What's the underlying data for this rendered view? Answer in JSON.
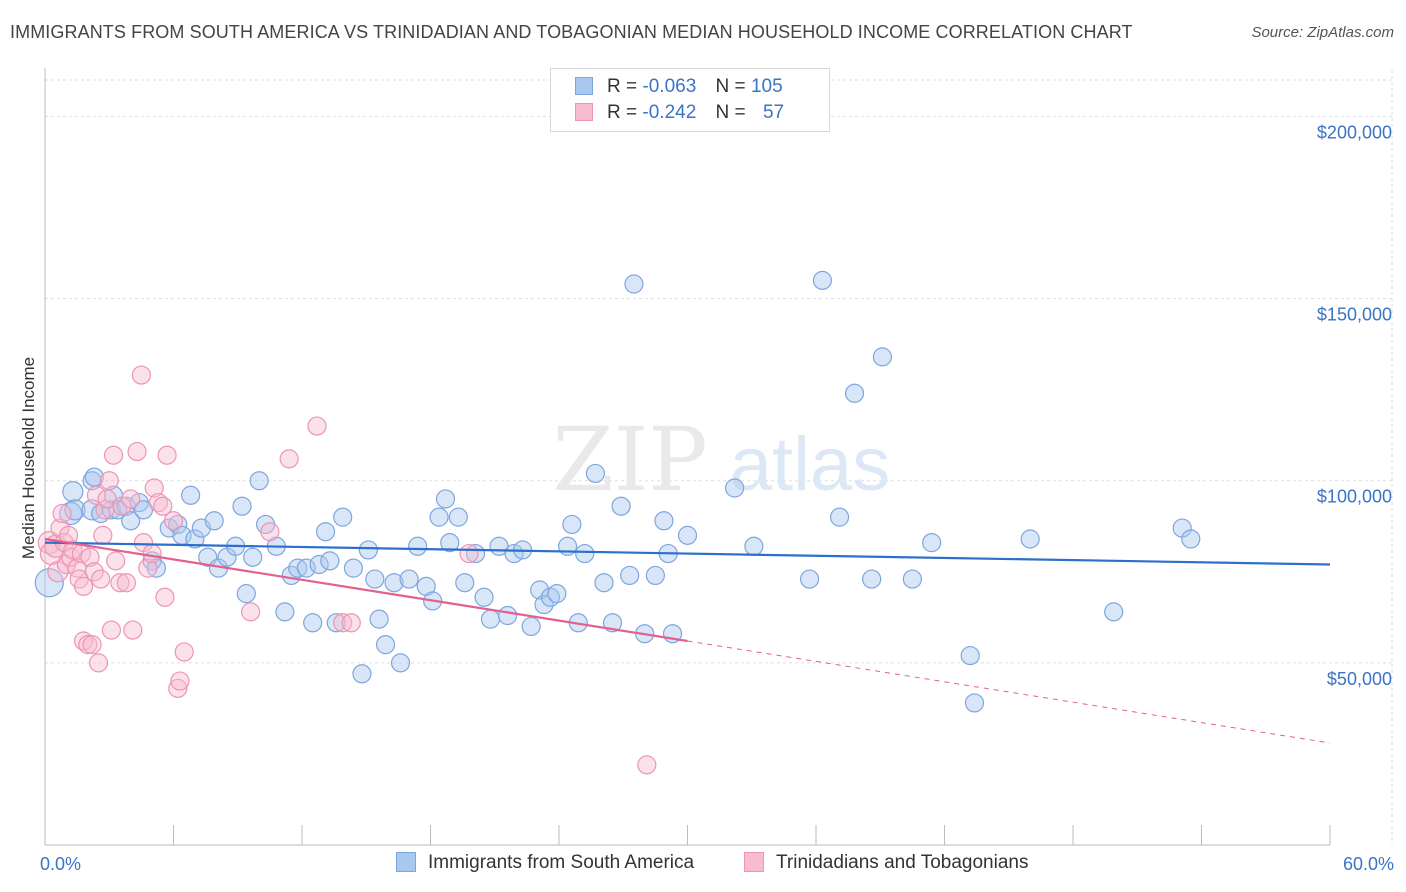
{
  "header": {
    "title": "IMMIGRANTS FROM SOUTH AMERICA VS TRINIDADIAN AND TOBAGONIAN MEDIAN HOUSEHOLD INCOME CORRELATION CHART",
    "source": "Source: ZipAtlas.com"
  },
  "legend": {
    "rows": [
      {
        "r_label": "R =",
        "r_value": "-0.063",
        "n_label": "N =",
        "n_value": "105"
      },
      {
        "r_label": "R =",
        "r_value": "-0.242",
        "n_label": "N =",
        "n_value": "57"
      }
    ]
  },
  "watermark": {
    "zip": "ZIP",
    "atlas": "atlas"
  },
  "colors": {
    "blue_fill": "#a9c8f0",
    "blue_stroke": "#7ea6de",
    "blue_line": "#2c6fcc",
    "pink_fill": "#f7bcd0",
    "pink_stroke": "#ee94b4",
    "pink_line": "#e4608e",
    "grid": "#dddddd",
    "tick_text": "#3a74c6"
  },
  "chart_data": {
    "type": "scatter",
    "title": "IMMIGRANTS FROM SOUTH AMERICA VS TRINIDADIAN AND TOBAGONIAN MEDIAN HOUSEHOLD INCOME CORRELATION CHART",
    "xlabel": "",
    "ylabel": "Median Household Income",
    "xlim": [
      0,
      60
    ],
    "ylim": [
      0,
      210000
    ],
    "x_tick_labels": [
      "0.0%",
      "60.0%"
    ],
    "y_ticks": [
      50000,
      100000,
      150000,
      200000
    ],
    "y_tick_labels": [
      "$50,000",
      "$100,000",
      "$150,000",
      "$200,000"
    ],
    "grid": true,
    "legend_position": "top-center",
    "series": [
      {
        "name": "Immigrants from South America",
        "r": -0.063,
        "n": 105,
        "trend": {
          "x": [
            0,
            60
          ],
          "y": [
            83000,
            77000
          ]
        },
        "points": [
          [
            0.2,
            72000,
            14
          ],
          [
            1.2,
            91000,
            11
          ],
          [
            1.3,
            97000,
            10
          ],
          [
            1.4,
            92000,
            10
          ],
          [
            2.2,
            92000,
            10
          ],
          [
            2.2,
            100000,
            9
          ],
          [
            2.3,
            101000,
            9
          ],
          [
            2.6,
            91000,
            9
          ],
          [
            3.1,
            92000,
            9
          ],
          [
            3.2,
            96000,
            9
          ],
          [
            3.4,
            92000,
            9
          ],
          [
            3.8,
            93000,
            9
          ],
          [
            4.0,
            89000,
            9
          ],
          [
            4.4,
            94000,
            9
          ],
          [
            4.6,
            92000,
            9
          ],
          [
            5.0,
            78000,
            9
          ],
          [
            5.2,
            76000,
            9
          ],
          [
            5.8,
            87000,
            9
          ],
          [
            6.2,
            88000,
            9
          ],
          [
            6.4,
            85000,
            9
          ],
          [
            6.8,
            96000,
            9
          ],
          [
            7.0,
            84000,
            9
          ],
          [
            7.3,
            87000,
            9
          ],
          [
            7.6,
            79000,
            9
          ],
          [
            7.9,
            89000,
            9
          ],
          [
            8.1,
            76000,
            9
          ],
          [
            8.5,
            79000,
            9
          ],
          [
            8.9,
            82000,
            9
          ],
          [
            9.2,
            93000,
            9
          ],
          [
            9.4,
            69000,
            9
          ],
          [
            9.7,
            79000,
            9
          ],
          [
            10.0,
            100000,
            9
          ],
          [
            10.3,
            88000,
            9
          ],
          [
            10.8,
            82000,
            9
          ],
          [
            11.2,
            64000,
            9
          ],
          [
            11.5,
            74000,
            9
          ],
          [
            11.8,
            76000,
            9
          ],
          [
            12.2,
            76000,
            9
          ],
          [
            12.5,
            61000,
            9
          ],
          [
            12.8,
            77000,
            9
          ],
          [
            13.1,
            86000,
            9
          ],
          [
            13.3,
            78000,
            9
          ],
          [
            13.6,
            61000,
            9
          ],
          [
            13.9,
            90000,
            9
          ],
          [
            14.4,
            76000,
            9
          ],
          [
            14.8,
            47000,
            9
          ],
          [
            15.1,
            81000,
            9
          ],
          [
            15.4,
            73000,
            9
          ],
          [
            15.6,
            62000,
            9
          ],
          [
            15.9,
            55000,
            9
          ],
          [
            16.3,
            72000,
            9
          ],
          [
            16.6,
            50000,
            9
          ],
          [
            17.0,
            73000,
            9
          ],
          [
            17.4,
            82000,
            9
          ],
          [
            17.8,
            71000,
            9
          ],
          [
            18.1,
            67000,
            9
          ],
          [
            18.4,
            90000,
            9
          ],
          [
            18.7,
            95000,
            9
          ],
          [
            18.9,
            83000,
            9
          ],
          [
            19.3,
            90000,
            9
          ],
          [
            19.6,
            72000,
            9
          ],
          [
            20.1,
            80000,
            9
          ],
          [
            20.5,
            68000,
            9
          ],
          [
            20.8,
            62000,
            9
          ],
          [
            21.2,
            82000,
            9
          ],
          [
            21.6,
            63000,
            9
          ],
          [
            21.9,
            80000,
            9
          ],
          [
            22.3,
            81000,
            9
          ],
          [
            22.7,
            60000,
            9
          ],
          [
            23.1,
            70000,
            9
          ],
          [
            23.3,
            66000,
            9
          ],
          [
            23.6,
            68000,
            9
          ],
          [
            23.9,
            69000,
            9
          ],
          [
            24.4,
            82000,
            9
          ],
          [
            24.6,
            88000,
            9
          ],
          [
            24.9,
            61000,
            9
          ],
          [
            25.2,
            80000,
            9
          ],
          [
            25.7,
            102000,
            9
          ],
          [
            26.1,
            72000,
            9
          ],
          [
            26.5,
            61000,
            9
          ],
          [
            26.9,
            93000,
            9
          ],
          [
            27.3,
            74000,
            9
          ],
          [
            27.5,
            154000,
            9
          ],
          [
            28.0,
            58000,
            9
          ],
          [
            28.5,
            74000,
            9
          ],
          [
            28.9,
            89000,
            9
          ],
          [
            29.1,
            80000,
            9
          ],
          [
            29.3,
            58000,
            9
          ],
          [
            30.0,
            85000,
            9
          ],
          [
            32.2,
            98000,
            9
          ],
          [
            33.1,
            82000,
            9
          ],
          [
            35.7,
            73000,
            9
          ],
          [
            36.3,
            155000,
            9
          ],
          [
            37.1,
            90000,
            9
          ],
          [
            37.8,
            124000,
            9
          ],
          [
            38.6,
            73000,
            9
          ],
          [
            39.1,
            134000,
            9
          ],
          [
            40.5,
            73000,
            9
          ],
          [
            41.4,
            83000,
            9
          ],
          [
            43.2,
            52000,
            9
          ],
          [
            43.4,
            39000,
            9
          ],
          [
            46.0,
            84000,
            9
          ],
          [
            49.9,
            64000,
            9
          ],
          [
            53.1,
            87000,
            9
          ],
          [
            53.5,
            84000,
            9
          ]
        ]
      },
      {
        "name": "Trinidadians and Tobagonians",
        "r": -0.242,
        "n": 57,
        "trend": {
          "x": [
            0,
            30
          ],
          "y": [
            84000,
            56000
          ],
          "dashed_to": {
            "x": 60,
            "y": 28000
          }
        },
        "points": [
          [
            0.2,
            83000,
            11
          ],
          [
            0.3,
            80000,
            11
          ],
          [
            0.5,
            82000,
            11
          ],
          [
            0.6,
            75000,
            10
          ],
          [
            0.7,
            87000,
            9
          ],
          [
            0.8,
            91000,
            9
          ],
          [
            0.9,
            83000,
            9
          ],
          [
            1.0,
            77000,
            9
          ],
          [
            1.1,
            85000,
            9
          ],
          [
            1.2,
            79000,
            9
          ],
          [
            1.3,
            81000,
            9
          ],
          [
            1.5,
            76000,
            9
          ],
          [
            1.6,
            73000,
            9
          ],
          [
            1.7,
            80000,
            9
          ],
          [
            1.8,
            71000,
            9
          ],
          [
            1.8,
            56000,
            9
          ],
          [
            2.0,
            55000,
            9
          ],
          [
            2.1,
            79000,
            9
          ],
          [
            2.2,
            55000,
            9
          ],
          [
            2.3,
            75000,
            9
          ],
          [
            2.4,
            96000,
            9
          ],
          [
            2.5,
            50000,
            9
          ],
          [
            2.6,
            73000,
            9
          ],
          [
            2.7,
            85000,
            9
          ],
          [
            2.8,
            92000,
            9
          ],
          [
            2.9,
            95000,
            9
          ],
          [
            3.0,
            100000,
            9
          ],
          [
            3.1,
            59000,
            9
          ],
          [
            3.2,
            107000,
            9
          ],
          [
            3.3,
            78000,
            9
          ],
          [
            3.5,
            72000,
            9
          ],
          [
            3.6,
            93000,
            9
          ],
          [
            3.8,
            72000,
            9
          ],
          [
            4.0,
            95000,
            9
          ],
          [
            4.1,
            59000,
            9
          ],
          [
            4.3,
            108000,
            9
          ],
          [
            4.5,
            129000,
            9
          ],
          [
            4.6,
            83000,
            9
          ],
          [
            4.8,
            76000,
            9
          ],
          [
            5.0,
            80000,
            9
          ],
          [
            5.1,
            98000,
            9
          ],
          [
            5.3,
            94000,
            9
          ],
          [
            5.5,
            93000,
            9
          ],
          [
            5.6,
            68000,
            9
          ],
          [
            5.7,
            107000,
            9
          ],
          [
            6.0,
            89000,
            9
          ],
          [
            6.2,
            43000,
            9
          ],
          [
            6.3,
            45000,
            9
          ],
          [
            6.5,
            53000,
            9
          ],
          [
            9.6,
            64000,
            9
          ],
          [
            10.5,
            86000,
            9
          ],
          [
            11.4,
            106000,
            9
          ],
          [
            12.7,
            115000,
            9
          ],
          [
            13.9,
            61000,
            9
          ],
          [
            14.3,
            61000,
            9
          ],
          [
            19.8,
            80000,
            9
          ],
          [
            28.1,
            22000,
            9
          ]
        ]
      }
    ]
  }
}
